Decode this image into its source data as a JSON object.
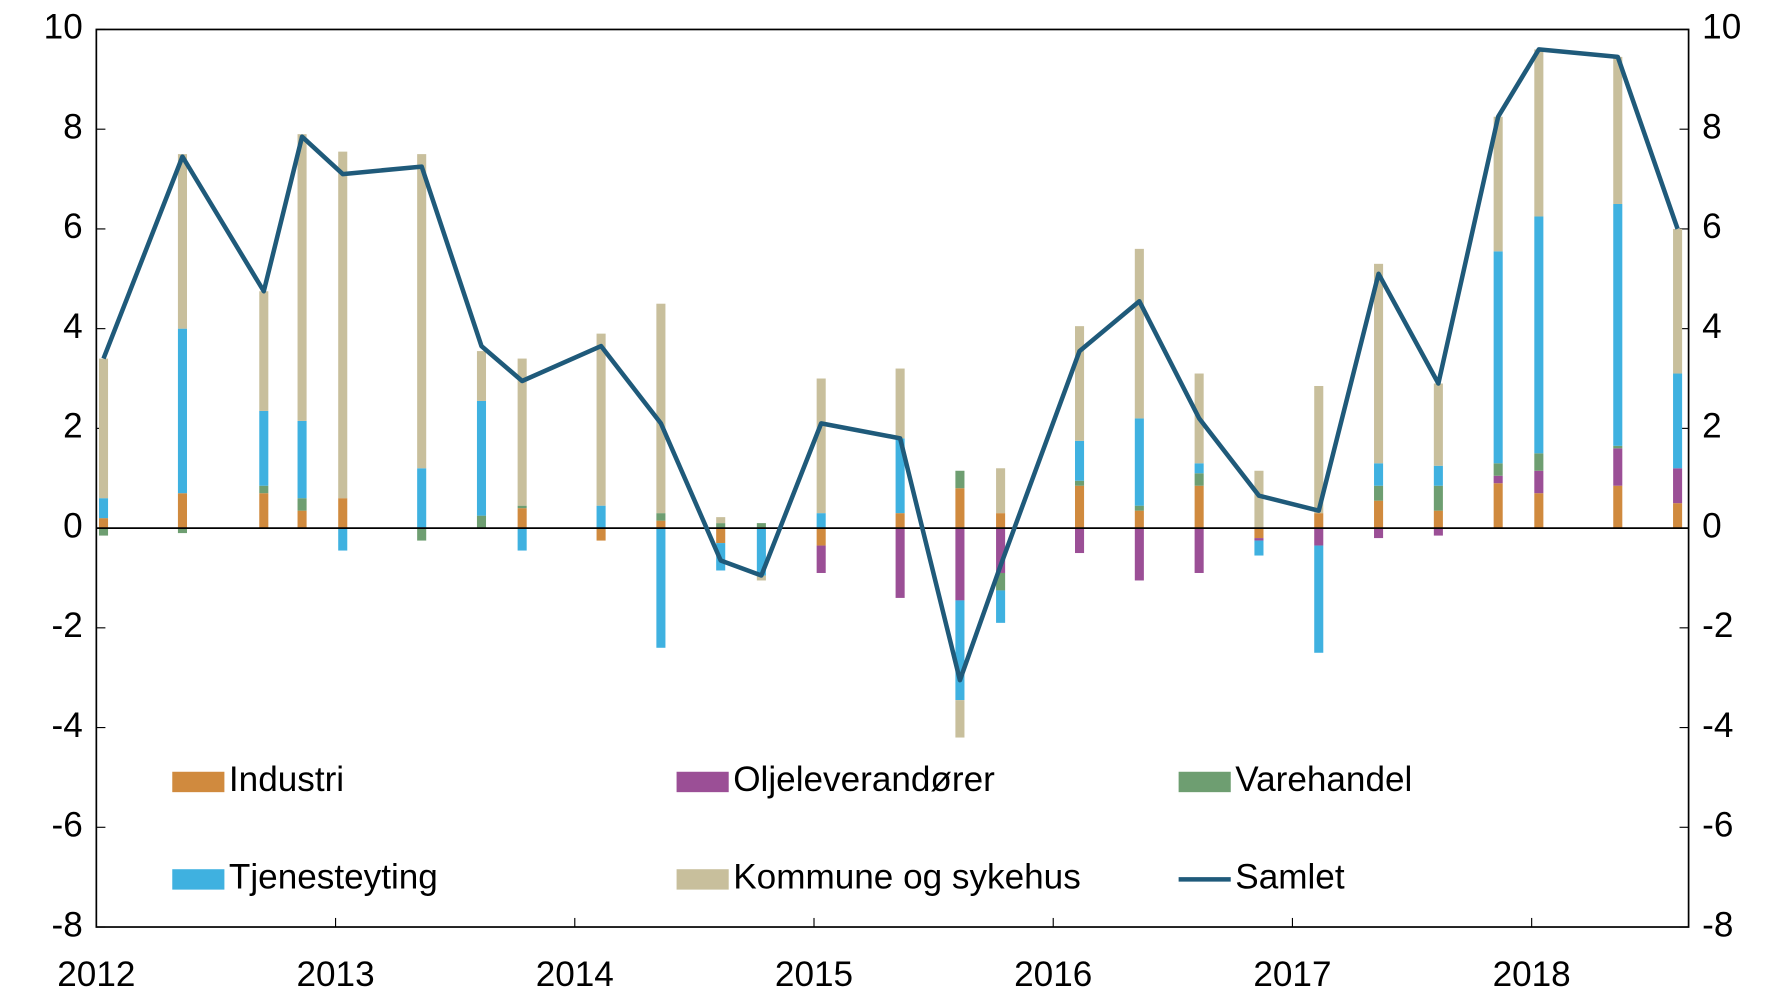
{
  "chart_data": {
    "type": "bar",
    "x": [
      2012.03,
      2012.36,
      2012.7,
      2012.86,
      2013.03,
      2013.36,
      2013.61,
      2013.78,
      2014.11,
      2014.36,
      2014.61,
      2014.78,
      2015.03,
      2015.36,
      2015.61,
      2015.78,
      2016.11,
      2016.36,
      2016.61,
      2016.86,
      2017.11,
      2017.36,
      2017.61,
      2017.86,
      2018.03,
      2018.36,
      2018.61
    ],
    "series": [
      {
        "name": "Industri",
        "color": "#d08a3e",
        "values": [
          0.2,
          0.7,
          0.7,
          0.35,
          0.6,
          0,
          0,
          0.4,
          -0.25,
          0.15,
          -0.3,
          0,
          -0.35,
          0.3,
          0.8,
          0.3,
          0.85,
          0.35,
          0.85,
          -0.2,
          0.3,
          0.55,
          0.35,
          0.9,
          0.7,
          0.85,
          0.5
        ]
      },
      {
        "name": "Oljeleverandører",
        "color": "#9b4f96",
        "values": [
          0,
          0,
          0,
          0,
          0,
          0,
          0,
          0,
          0,
          0,
          0,
          0,
          -0.55,
          -1.4,
          -1.45,
          -0.9,
          -0.5,
          -1.05,
          -0.9,
          -0.05,
          -0.35,
          -0.2,
          -0.15,
          0.15,
          0.45,
          0.75,
          0.7
        ]
      },
      {
        "name": "Varehandel",
        "color": "#6e9e71",
        "values": [
          -0.15,
          -0.1,
          0.15,
          0.25,
          0,
          -0.25,
          0.25,
          0.05,
          0,
          0.15,
          0.1,
          0.1,
          0,
          0,
          0.35,
          -0.35,
          0.1,
          0.1,
          0.25,
          0,
          0,
          0.3,
          0.5,
          0.25,
          0.35,
          0.05,
          0
        ]
      },
      {
        "name": "Tjenesteyting",
        "color": "#3fb1e0",
        "values": [
          0.4,
          3.3,
          1.5,
          1.55,
          -0.45,
          1.2,
          2.3,
          -0.45,
          0.45,
          -2.4,
          -0.55,
          -0.95,
          0.3,
          1.5,
          -2.0,
          -0.65,
          0.8,
          1.75,
          0.2,
          -0.3,
          -2.15,
          0.45,
          0.4,
          4.25,
          4.75,
          4.85,
          1.9
        ]
      },
      {
        "name": "Kommune og sykehus",
        "color": "#c8bf9c",
        "values": [
          2.8,
          3.5,
          2.4,
          5.75,
          6.95,
          6.3,
          1.0,
          2.95,
          3.45,
          4.2,
          0.12,
          -0.1,
          2.7,
          1.4,
          -0.75,
          0.9,
          2.3,
          3.4,
          1.8,
          1.15,
          2.55,
          4.0,
          1.65,
          2.7,
          3.35,
          2.95,
          2.9
        ]
      },
      {
        "name": "Samlet",
        "type": "line",
        "color": "#1f5a7a",
        "values": [
          3.4,
          7.45,
          4.75,
          7.85,
          7.1,
          7.25,
          3.65,
          2.95,
          3.65,
          2.1,
          -0.65,
          -0.95,
          2.1,
          1.8,
          -3.05,
          -0.75,
          3.55,
          4.55,
          2.2,
          0.65,
          0.35,
          5.1,
          2.9,
          8.25,
          9.6,
          9.45,
          6.0
        ]
      }
    ],
    "xlim": [
      2012,
      2018.656
    ],
    "xticks": [
      2012,
      2013,
      2014,
      2015,
      2016,
      2017,
      2018
    ],
    "ylim": [
      -8,
      10
    ],
    "yticks": [
      -8,
      -6,
      -4,
      -2,
      0,
      2,
      4,
      6,
      8,
      10
    ],
    "y2lim": [
      -8,
      10
    ],
    "y2ticks": [
      -8,
      -6,
      -4,
      -2,
      0,
      2,
      4,
      6,
      8,
      10
    ],
    "legend": "lower center"
  }
}
